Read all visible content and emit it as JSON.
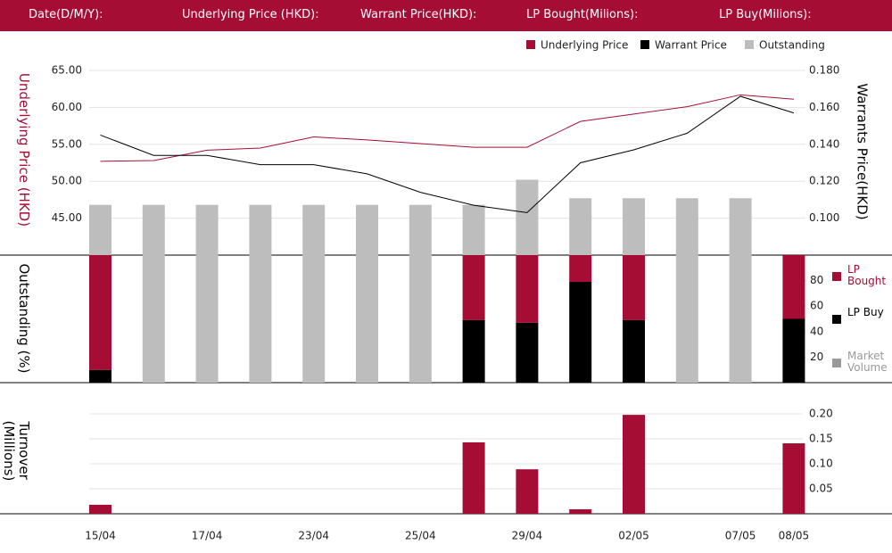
{
  "header": {
    "fields": [
      "Date(D/M/Y):",
      "Underlying Price (HKD):",
      "Warrant  Price(HKD):",
      "LP Bought(Milions):",
      "LP Buy(Milions):"
    ]
  },
  "chart_data": [
    {
      "type": "line",
      "ylabel": "Underlying Price (HKD)",
      "y2label": "Warrants  Price(HKD)",
      "ylim": [
        40,
        65
      ],
      "yticks": [
        {
          "value": 45,
          "label": "45.00"
        },
        {
          "value": 50,
          "label": "50.00"
        },
        {
          "value": 55,
          "label": "55.00"
        },
        {
          "value": 60,
          "label": "60.00"
        },
        {
          "value": 65,
          "label": "65.00"
        }
      ],
      "y2lim": [
        0.08,
        0.18
      ],
      "y2ticks": [
        {
          "value": 0.1,
          "label": "0.100"
        },
        {
          "value": 0.12,
          "label": "0.120"
        },
        {
          "value": 0.14,
          "label": "0.140"
        },
        {
          "value": 0.16,
          "label": "0.160"
        },
        {
          "value": 0.18,
          "label": "0.180"
        }
      ],
      "grid": true,
      "series": [
        {
          "name": "Underlying Price",
          "type": "line",
          "color": "#a50d35",
          "values": [
            52.7,
            52.8,
            54.2,
            54.5,
            56.0,
            55.6,
            55.1,
            54.6,
            54.6,
            58.1,
            59.1,
            60.1,
            61.7,
            61.1
          ]
        },
        {
          "name": "Warrant  Price",
          "type": "line",
          "axis": "y2",
          "color": "#000000",
          "values": [
            0.145,
            0.134,
            0.134,
            0.129,
            0.129,
            0.124,
            0.114,
            0.107,
            0.103,
            0.13,
            0.137,
            0.146,
            0.166,
            0.157
          ]
        },
        {
          "name": "Outstanding",
          "type": "bar",
          "color": "#bdbdbd",
          "values": [
            46.8,
            46.8,
            46.8,
            46.8,
            46.8,
            46.8,
            46.8,
            46.8,
            50.2,
            47.7,
            47.7,
            47.7,
            47.7,
            null
          ]
        }
      ]
    },
    {
      "type": "bar",
      "stacked": true,
      "ylabel": "Outstanding (%)",
      "ylim": [
        0,
        100
      ],
      "yticks": [
        20,
        40,
        60,
        80
      ],
      "series": [
        {
          "name": "LP Bought",
          "color": "#a50d35",
          "values": [
            90,
            null,
            null,
            null,
            null,
            null,
            null,
            51,
            53,
            21,
            51,
            null,
            null,
            50
          ]
        },
        {
          "name": "LP Buy",
          "color": "#000000",
          "values": [
            10,
            null,
            null,
            null,
            null,
            null,
            null,
            49,
            47,
            79,
            49,
            null,
            null,
            50
          ]
        },
        {
          "name": "Market Volume",
          "color": "#bdbdbd",
          "values": [
            null,
            100,
            100,
            100,
            100,
            100,
            100,
            null,
            null,
            null,
            null,
            100,
            100,
            null
          ]
        }
      ]
    },
    {
      "type": "bar",
      "ylabel": "Turnover (Millions)",
      "ylim": [
        0,
        0.25
      ],
      "yticks": [
        {
          "value": 0.05,
          "label": "0.05"
        },
        {
          "value": 0.1,
          "label": "0.10"
        },
        {
          "value": 0.15,
          "label": "0.15"
        },
        {
          "value": 0.2,
          "label": "0.20"
        }
      ],
      "grid": true,
      "color": "#a50d35",
      "categories": [
        "15/04",
        null,
        "17/04",
        null,
        "23/04",
        null,
        "25/04",
        null,
        "29/04",
        null,
        "02/05",
        null,
        "07/05",
        "08/05"
      ],
      "values": [
        0.018,
        null,
        null,
        null,
        null,
        null,
        null,
        0.143,
        0.089,
        0.009,
        0.198,
        null,
        null,
        0.141
      ]
    }
  ]
}
